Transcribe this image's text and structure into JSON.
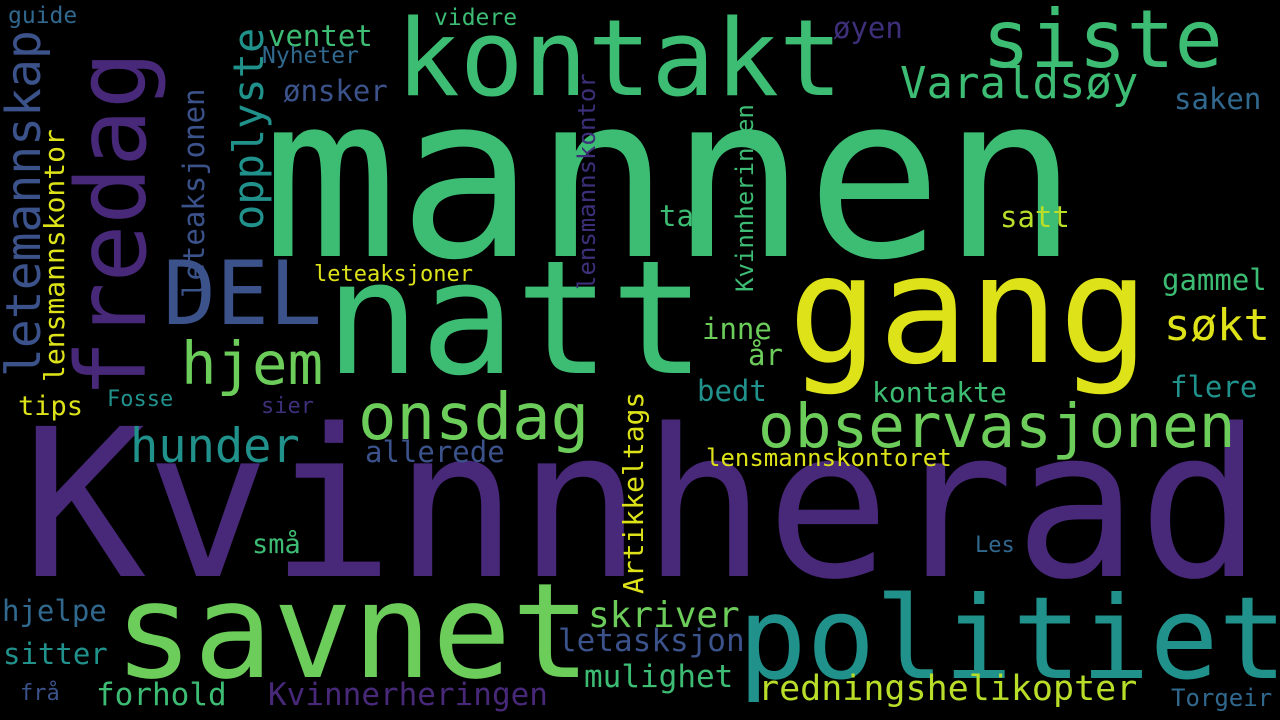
{
  "background": "#000000",
  "palette": {
    "dark_purple": "#482878",
    "purple": "#3e2f7a",
    "indigo": "#3b528b",
    "blue": "#31688e",
    "teal": "#21918c",
    "sea": "#26a784",
    "green": "#3dbc74",
    "light_green": "#6ccd5a",
    "lime": "#b8de29",
    "yellow": "#dde318"
  },
  "words": [
    {
      "text": "Kvinnherad",
      "color": "#482878",
      "orientation": "horizontal"
    },
    {
      "text": "mannen",
      "color": "#3dbc74",
      "orientation": "horizontal"
    },
    {
      "text": "natt",
      "color": "#3dbc74",
      "orientation": "horizontal"
    },
    {
      "text": "gang",
      "color": "#dde318",
      "orientation": "horizontal"
    },
    {
      "text": "savnet",
      "color": "#6ccd5a",
      "orientation": "horizontal"
    },
    {
      "text": "politiet",
      "color": "#21918c",
      "orientation": "horizontal"
    },
    {
      "text": "kontakt",
      "color": "#3dbc74",
      "orientation": "horizontal"
    },
    {
      "text": "fredag",
      "color": "#482878",
      "orientation": "vertical"
    },
    {
      "text": "siste",
      "color": "#3dbc74",
      "orientation": "horizontal"
    },
    {
      "text": "DEL",
      "color": "#3b528b",
      "orientation": "horizontal"
    },
    {
      "text": "observasjonen",
      "color": "#6ccd5a",
      "orientation": "horizontal"
    },
    {
      "text": "onsdag",
      "color": "#6ccd5a",
      "orientation": "horizontal"
    },
    {
      "text": "hjem",
      "color": "#6ccd5a",
      "orientation": "horizontal"
    },
    {
      "text": "hunder",
      "color": "#21918c",
      "orientation": "horizontal"
    },
    {
      "text": "Varaldsøy",
      "color": "#3dbc74",
      "orientation": "horizontal"
    },
    {
      "text": "opplyste",
      "color": "#21918c",
      "orientation": "vertical"
    },
    {
      "text": "letemannskap",
      "color": "#3b528b",
      "orientation": "vertical"
    },
    {
      "text": "søkt",
      "color": "#dde318",
      "orientation": "horizontal"
    },
    {
      "text": "redningshelikopter",
      "color": "#b8de29",
      "orientation": "horizontal"
    },
    {
      "text": "skriver",
      "color": "#6ccd5a",
      "orientation": "horizontal"
    },
    {
      "text": "mulighet",
      "color": "#3dbc74",
      "orientation": "horizontal"
    },
    {
      "text": "Kvinnerheringen",
      "color": "#482878",
      "orientation": "horizontal"
    },
    {
      "text": "forhold",
      "color": "#3dbc74",
      "orientation": "horizontal"
    },
    {
      "text": "letasksjon",
      "color": "#3b528b",
      "orientation": "horizontal"
    },
    {
      "text": "Artikkeltags",
      "color": "#dde318",
      "orientation": "vertical"
    },
    {
      "text": "lensmannskontor",
      "color": "#dde318",
      "orientation": "vertical"
    },
    {
      "text": "leteaksjonen",
      "color": "#3b528b",
      "orientation": "vertical"
    },
    {
      "text": "Kvinnheringen",
      "color": "#3dbc74",
      "orientation": "vertical"
    },
    {
      "text": "lensmannskontor",
      "color": "#3e2f7a",
      "orientation": "vertical"
    },
    {
      "text": "lensmannskontoret",
      "color": "#dde318",
      "orientation": "horizontal"
    },
    {
      "text": "kontakte",
      "color": "#3dbc74",
      "orientation": "horizontal"
    },
    {
      "text": "allerede",
      "color": "#3b528b",
      "orientation": "horizontal"
    },
    {
      "text": "ventet",
      "color": "#3dbc74",
      "orientation": "horizontal"
    },
    {
      "text": "ønsker",
      "color": "#3b528b",
      "orientation": "horizontal"
    },
    {
      "text": "øyen",
      "color": "#3e2f7a",
      "orientation": "horizontal"
    },
    {
      "text": "videre",
      "color": "#3dbc74",
      "orientation": "horizontal"
    },
    {
      "text": "Nyheter",
      "color": "#31688e",
      "orientation": "horizontal"
    },
    {
      "text": "guide",
      "color": "#31688e",
      "orientation": "horizontal"
    },
    {
      "text": "saken",
      "color": "#31688e",
      "orientation": "horizontal"
    },
    {
      "text": "satt",
      "color": "#b8de29",
      "orientation": "horizontal"
    },
    {
      "text": "gammel",
      "color": "#3dbc74",
      "orientation": "horizontal"
    },
    {
      "text": "ta",
      "color": "#3dbc74",
      "orientation": "horizontal"
    },
    {
      "text": "inne",
      "color": "#6ccd5a",
      "orientation": "horizontal"
    },
    {
      "text": "år",
      "color": "#6ccd5a",
      "orientation": "horizontal"
    },
    {
      "text": "bedt",
      "color": "#21918c",
      "orientation": "horizontal"
    },
    {
      "text": "flere",
      "color": "#21918c",
      "orientation": "horizontal"
    },
    {
      "text": "leteaksjoner",
      "color": "#dde318",
      "orientation": "horizontal"
    },
    {
      "text": "tips",
      "color": "#dde318",
      "orientation": "horizontal"
    },
    {
      "text": "Fosse",
      "color": "#21918c",
      "orientation": "horizontal"
    },
    {
      "text": "sier",
      "color": "#3e2f7a",
      "orientation": "horizontal"
    },
    {
      "text": "små",
      "color": "#3dbc74",
      "orientation": "horizontal"
    },
    {
      "text": "Les",
      "color": "#31688e",
      "orientation": "horizontal"
    },
    {
      "text": "hjelpe",
      "color": "#31688e",
      "orientation": "horizontal"
    },
    {
      "text": "sitter",
      "color": "#21918c",
      "orientation": "horizontal"
    },
    {
      "text": "frå",
      "color": "#3b528b",
      "orientation": "horizontal"
    },
    {
      "text": "Torgeir",
      "color": "#31688e",
      "orientation": "horizontal"
    }
  ]
}
